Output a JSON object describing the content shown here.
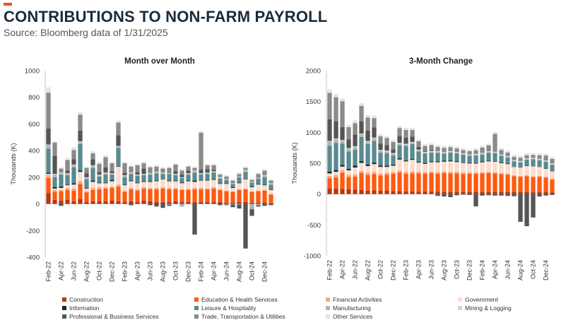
{
  "header": {
    "accent_color": "#e8541c",
    "title": "CONTRIBUTIONS TO NON-FARM PAYROLL",
    "subtitle": "Source: Bloomberg data of 1/31/2025"
  },
  "x_tick_labels": [
    "Feb-22",
    "Apr-22",
    "Jun-22",
    "Aug-22",
    "Oct-22",
    "Dec-22",
    "Feb-23",
    "Apr-23",
    "Jun-23",
    "Aug-23",
    "Oct-23",
    "Dec-23",
    "Feb-24",
    "Apr-24",
    "Jun-24",
    "Aug-24",
    "Oct-24",
    "Dec-24"
  ],
  "legend": {
    "colors": {
      "construction": "#b5370e",
      "education_health": "#ff5a10",
      "financial": "#f5a882",
      "government": "#fcdccc",
      "information": "#0c3038",
      "leisure": "#5a8a8f",
      "manufacturing": "#b1b3b4",
      "mining": "#d3d3d3",
      "professional": "#555555",
      "trade": "#8a8a8a",
      "other": "#e3e3e3"
    },
    "items": [
      {
        "key": "construction",
        "label": "Construction"
      },
      {
        "key": "education_health",
        "label": "Education & Health Services"
      },
      {
        "key": "financial",
        "label": "Financial Activities"
      },
      {
        "key": "government",
        "label": "Government"
      },
      {
        "key": "information",
        "label": "Information"
      },
      {
        "key": "leisure",
        "label": "Leisure & Hospitality"
      },
      {
        "key": "manufacturing",
        "label": "Manufacturing"
      },
      {
        "key": "mining",
        "label": "Mining & Logging"
      },
      {
        "key": "professional",
        "label": "Professional & Business Services"
      },
      {
        "key": "trade",
        "label": "Trade, Transportation & Utilities"
      },
      {
        "key": "other",
        "label": "Other Services"
      }
    ]
  },
  "chart_data": [
    {
      "type": "bar",
      "stacked": true,
      "title": "Month over Month",
      "ylabel": "Thousands (K)",
      "ylim": [
        -400,
        1000
      ],
      "yticks": [
        -400,
        -200,
        0,
        200,
        400,
        600,
        800,
        1000
      ],
      "categories": [
        "Feb-22",
        "Mar-22",
        "Apr-22",
        "May-22",
        "Jun-22",
        "Jul-22",
        "Aug-22",
        "Sep-22",
        "Oct-22",
        "Nov-22",
        "Dec-22",
        "Jan-23",
        "Feb-23",
        "Mar-23",
        "Apr-23",
        "May-23",
        "Jun-23",
        "Jul-23",
        "Aug-23",
        "Sep-23",
        "Oct-23",
        "Nov-23",
        "Dec-23",
        "Jan-24",
        "Feb-24",
        "Mar-24",
        "Apr-24",
        "May-24",
        "Jun-24",
        "Jul-24",
        "Aug-24",
        "Sep-24",
        "Oct-24",
        "Nov-24",
        "Dec-24",
        "Jan-25"
      ],
      "series": [
        {
          "name": "construction",
          "values": [
            80,
            30,
            25,
            30,
            20,
            35,
            15,
            20,
            20,
            20,
            25,
            20,
            15,
            20,
            15,
            25,
            20,
            15,
            15,
            15,
            20,
            15,
            15,
            15,
            15,
            15,
            15,
            15,
            10,
            10,
            15,
            15,
            10,
            10,
            10,
            5
          ]
        },
        {
          "name": "education_health",
          "values": [
            115,
            60,
            70,
            75,
            80,
            115,
            70,
            85,
            90,
            95,
            95,
            110,
            75,
            90,
            85,
            90,
            90,
            95,
            100,
            95,
            90,
            90,
            90,
            95,
            95,
            95,
            100,
            90,
            85,
            80,
            90,
            95,
            80,
            85,
            90,
            65
          ]
        },
        {
          "name": "financial",
          "values": [
            20,
            15,
            10,
            15,
            15,
            20,
            10,
            15,
            15,
            10,
            10,
            15,
            10,
            10,
            10,
            10,
            10,
            10,
            10,
            10,
            10,
            5,
            10,
            10,
            10,
            5,
            10,
            5,
            5,
            5,
            5,
            5,
            5,
            5,
            5,
            5
          ]
        },
        {
          "name": "government",
          "values": [
            10,
            10,
            15,
            20,
            30,
            70,
            20,
            45,
            30,
            30,
            40,
            135,
            40,
            50,
            45,
            40,
            45,
            50,
            60,
            50,
            50,
            45,
            55,
            45,
            55,
            60,
            55,
            40,
            50,
            25,
            45,
            70,
            30,
            45,
            35,
            30
          ]
        },
        {
          "name": "information",
          "values": [
            10,
            10,
            10,
            5,
            10,
            10,
            5,
            10,
            5,
            5,
            10,
            5,
            5,
            5,
            5,
            5,
            5,
            5,
            5,
            5,
            5,
            5,
            5,
            10,
            5,
            5,
            5,
            5,
            5,
            5,
            5,
            5,
            5,
            5,
            5,
            5
          ]
        },
        {
          "name": "leisure",
          "values": [
            180,
            75,
            90,
            70,
            120,
            200,
            65,
            95,
            45,
            60,
            40,
            135,
            55,
            50,
            50,
            45,
            50,
            55,
            35,
            50,
            40,
            35,
            45,
            60,
            40,
            45,
            50,
            35,
            25,
            25,
            40,
            50,
            30,
            40,
            55,
            35
          ]
        },
        {
          "name": "manufacturing",
          "values": [
            25,
            20,
            10,
            10,
            15,
            15,
            10,
            15,
            10,
            10,
            5,
            10,
            10,
            5,
            5,
            5,
            5,
            5,
            5,
            -5,
            5,
            -20,
            5,
            10,
            5,
            5,
            5,
            5,
            -5,
            -5,
            -5,
            10,
            -40,
            -10,
            10,
            5
          ]
        },
        {
          "name": "mining",
          "values": [
            5,
            5,
            5,
            5,
            5,
            5,
            5,
            5,
            5,
            5,
            5,
            5,
            5,
            5,
            5,
            5,
            5,
            5,
            5,
            5,
            5,
            5,
            5,
            5,
            5,
            5,
            5,
            5,
            5,
            5,
            5,
            5,
            5,
            5,
            5,
            5
          ]
        },
        {
          "name": "professional",
          "values": [
            120,
            135,
            -15,
            20,
            40,
            80,
            30,
            45,
            20,
            40,
            15,
            80,
            20,
            -10,
            20,
            40,
            -10,
            -20,
            -30,
            -10,
            20,
            20,
            20,
            -230,
            25,
            25,
            10,
            -10,
            -5,
            -20,
            -30,
            -335,
            -50,
            -10,
            -15,
            -10
          ]
        },
        {
          "name": "trade",
          "values": [
            270,
            100,
            30,
            80,
            70,
            120,
            40,
            45,
            60,
            75,
            60,
            95,
            70,
            45,
            50,
            40,
            45,
            40,
            30,
            40,
            50,
            30,
            30,
            20,
            280,
            30,
            35,
            20,
            20,
            20,
            20,
            15,
            15,
            30,
            35,
            20
          ]
        },
        {
          "name": "other",
          "values": [
            40,
            10,
            10,
            15,
            20,
            20,
            10,
            15,
            15,
            15,
            10,
            15,
            10,
            10,
            10,
            10,
            10,
            10,
            10,
            10,
            10,
            10,
            10,
            10,
            10,
            10,
            10,
            10,
            10,
            10,
            10,
            10,
            10,
            10,
            10,
            10
          ]
        }
      ]
    },
    {
      "type": "bar",
      "stacked": true,
      "title": "3-Month Change",
      "ylabel": "Thousands (K)",
      "ylim": [
        -1000,
        2000
      ],
      "yticks": [
        -1000,
        -500,
        0,
        500,
        1000,
        1500,
        2000
      ],
      "categories": [
        "Feb-22",
        "Mar-22",
        "Apr-22",
        "May-22",
        "Jun-22",
        "Jul-22",
        "Aug-22",
        "Sep-22",
        "Oct-22",
        "Nov-22",
        "Dec-22",
        "Jan-23",
        "Feb-23",
        "Mar-23",
        "Apr-23",
        "May-23",
        "Jun-23",
        "Jul-23",
        "Aug-23",
        "Sep-23",
        "Oct-23",
        "Nov-23",
        "Dec-23",
        "Jan-24",
        "Feb-24",
        "Mar-24",
        "Apr-24",
        "May-24",
        "Jun-24",
        "Jul-24",
        "Aug-24",
        "Sep-24",
        "Oct-24",
        "Nov-24",
        "Dec-24",
        "Jan-25"
      ],
      "series": [
        {
          "name": "construction",
          "values": [
            95,
            90,
            85,
            80,
            70,
            65,
            55,
            60,
            55,
            55,
            50,
            50,
            45,
            45,
            40,
            45,
            40,
            40,
            35,
            35,
            40,
            35,
            35,
            40,
            35,
            35,
            40,
            35,
            35,
            35,
            40,
            35,
            30,
            30,
            30,
            25
          ]
        },
        {
          "name": "education_health",
          "values": [
            160,
            180,
            260,
            195,
            215,
            275,
            255,
            265,
            245,
            260,
            280,
            300,
            285,
            290,
            295,
            285,
            300,
            290,
            305,
            300,
            295,
            290,
            295,
            290,
            300,
            305,
            295,
            290,
            280,
            255,
            240,
            255,
            245,
            250,
            235,
            210
          ]
        },
        {
          "name": "financial",
          "values": [
            40,
            40,
            40,
            35,
            35,
            35,
            35,
            35,
            30,
            30,
            25,
            30,
            30,
            30,
            25,
            25,
            25,
            25,
            25,
            25,
            25,
            25,
            20,
            20,
            20,
            20,
            20,
            15,
            15,
            15,
            15,
            15,
            15,
            15,
            15,
            15
          ]
        },
        {
          "name": "government",
          "values": [
            40,
            50,
            60,
            75,
            110,
            130,
            110,
            125,
            110,
            95,
            105,
            180,
            170,
            190,
            150,
            135,
            150,
            160,
            160,
            170,
            160,
            155,
            145,
            145,
            160,
            170,
            170,
            160,
            155,
            135,
            135,
            150,
            160,
            145,
            130,
            120
          ]
        },
        {
          "name": "information",
          "values": [
            30,
            30,
            30,
            25,
            30,
            30,
            25,
            25,
            20,
            20,
            20,
            20,
            15,
            15,
            15,
            15,
            15,
            15,
            15,
            15,
            15,
            10,
            10,
            10,
            15,
            10,
            10,
            10,
            10,
            5,
            5,
            5,
            5,
            5,
            5,
            5
          ]
        },
        {
          "name": "leisure",
          "values": [
            420,
            440,
            340,
            280,
            260,
            390,
            330,
            350,
            210,
            200,
            145,
            210,
            230,
            240,
            165,
            150,
            140,
            140,
            115,
            130,
            125,
            125,
            115,
            120,
            110,
            130,
            130,
            110,
            100,
            85,
            80,
            100,
            110,
            105,
            110,
            100
          ]
        },
        {
          "name": "manufacturing",
          "values": [
            60,
            55,
            45,
            40,
            40,
            40,
            35,
            40,
            30,
            30,
            25,
            25,
            25,
            20,
            15,
            15,
            15,
            10,
            10,
            5,
            5,
            5,
            5,
            10,
            10,
            10,
            5,
            5,
            5,
            5,
            5,
            5,
            5,
            5,
            5,
            5
          ]
        },
        {
          "name": "mining",
          "values": [
            15,
            15,
            15,
            15,
            15,
            15,
            15,
            15,
            15,
            15,
            15,
            15,
            15,
            15,
            15,
            15,
            15,
            15,
            15,
            15,
            15,
            15,
            15,
            15,
            15,
            15,
            15,
            15,
            15,
            15,
            15,
            15,
            15,
            15,
            15,
            15
          ]
        },
        {
          "name": "professional",
          "values": [
            350,
            280,
            210,
            140,
            190,
            200,
            170,
            165,
            100,
            90,
            60,
            110,
            100,
            85,
            45,
            15,
            20,
            -30,
            -40,
            -50,
            -20,
            -10,
            -15,
            -200,
            -25,
            -20,
            -25,
            -25,
            -30,
            -35,
            -450,
            -520,
            -380,
            -40,
            -25,
            -15
          ]
        },
        {
          "name": "trade",
          "values": [
            430,
            390,
            420,
            200,
            185,
            250,
            210,
            150,
            120,
            115,
            120,
            130,
            125,
            110,
            90,
            80,
            75,
            70,
            70,
            65,
            60,
            55,
            55,
            60,
            90,
            95,
            290,
            75,
            60,
            55,
            55,
            50,
            50,
            60,
            80,
            75
          ]
        },
        {
          "name": "other",
          "values": [
            55,
            50,
            45,
            40,
            45,
            45,
            40,
            40,
            35,
            35,
            35,
            35,
            35,
            35,
            30,
            30,
            30,
            30,
            30,
            30,
            30,
            30,
            30,
            30,
            30,
            30,
            30,
            30,
            30,
            30,
            30,
            30,
            30,
            30,
            30,
            30
          ]
        }
      ]
    }
  ]
}
